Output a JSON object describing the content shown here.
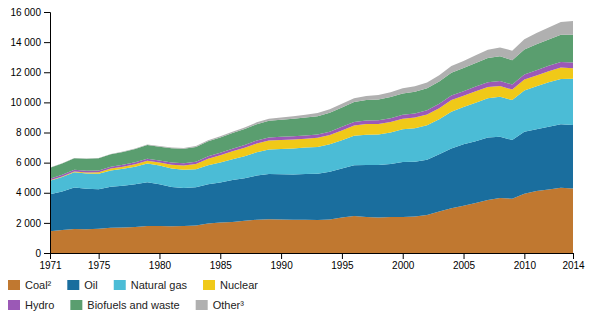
{
  "chart_data": {
    "type": "area",
    "stacked": true,
    "grid": false,
    "legend": "bottom",
    "x": [
      1971,
      1972,
      1973,
      1974,
      1975,
      1976,
      1977,
      1978,
      1979,
      1980,
      1981,
      1982,
      1983,
      1984,
      1985,
      1986,
      1987,
      1988,
      1989,
      1990,
      1991,
      1992,
      1993,
      1994,
      1995,
      1996,
      1997,
      1998,
      1999,
      2000,
      2001,
      2002,
      2003,
      2004,
      2005,
      2006,
      2007,
      2008,
      2009,
      2010,
      2011,
      2012,
      2013,
      2014
    ],
    "xlim": [
      1971,
      2014
    ],
    "xticks": [
      1971,
      1975,
      1980,
      1985,
      1990,
      1995,
      2000,
      2005,
      2010,
      2014
    ],
    "ylim": [
      0,
      16000
    ],
    "yticks": [
      0,
      {
        "value": 2000,
        "label": "2 000"
      },
      {
        "value": 4000,
        "label": "4 000"
      },
      {
        "value": 6000,
        "label": "6 000"
      },
      {
        "value": 8000,
        "label": "8 000"
      },
      {
        "value": 10000,
        "label": "10 000"
      },
      {
        "value": 12000,
        "label": "12 000"
      },
      {
        "value": 14000,
        "label": "14 000"
      },
      {
        "value": 16000,
        "label": "16 000"
      }
    ],
    "series": [
      {
        "name": "Coal²",
        "color": "#c07830",
        "values": [
          1449,
          1525,
          1590,
          1580,
          1613,
          1674,
          1699,
          1731,
          1790,
          1792,
          1773,
          1787,
          1831,
          1955,
          2020,
          2066,
          2147,
          2213,
          2245,
          2226,
          2212,
          2201,
          2199,
          2227,
          2349,
          2451,
          2389,
          2356,
          2395,
          2384,
          2417,
          2516,
          2763,
          2969,
          3136,
          3313,
          3524,
          3644,
          3606,
          3938,
          4109,
          4218,
          4328,
          4286
        ]
      },
      {
        "name": "Oil",
        "color": "#1a6e9e",
        "values": [
          2450,
          2563,
          2756,
          2679,
          2620,
          2730,
          2769,
          2826,
          2914,
          2774,
          2613,
          2536,
          2533,
          2613,
          2656,
          2778,
          2821,
          2928,
          3000,
          3006,
          3007,
          3038,
          3061,
          3161,
          3269,
          3381,
          3449,
          3486,
          3518,
          3654,
          3643,
          3677,
          3785,
          3970,
          4078,
          4101,
          4148,
          4075,
          3897,
          4113,
          4114,
          4172,
          4219,
          4211
        ]
      },
      {
        "name": "Natural gas",
        "color": "#4bbcd6",
        "values": [
          895,
          952,
          1007,
          1018,
          1028,
          1080,
          1122,
          1175,
          1241,
          1235,
          1225,
          1196,
          1199,
          1264,
          1334,
          1383,
          1456,
          1552,
          1628,
          1675,
          1724,
          1760,
          1784,
          1833,
          1873,
          1953,
          2019,
          2026,
          2090,
          2171,
          2217,
          2281,
          2337,
          2444,
          2475,
          2566,
          2600,
          2655,
          2649,
          2740,
          2848,
          2938,
          3004,
          3065
        ]
      },
      {
        "name": "Nuclear",
        "color": "#f0c918",
        "values": [
          29,
          40,
          54,
          72,
          100,
          120,
          140,
          160,
          180,
          200,
          255,
          290,
          340,
          420,
          480,
          520,
          560,
          580,
          600,
          600,
          600,
          590,
          600,
          610,
          650,
          680,
          700,
          690,
          690,
          700,
          720,
          720,
          730,
          770,
          750,
          760,
          750,
          720,
          700,
          720,
          720,
          740,
          760,
          710
        ]
      },
      {
        "name": "Hydro",
        "color": "#9b59b6",
        "values": [
          104,
          108,
          112,
          115,
          118,
          122,
          126,
          132,
          138,
          144,
          148,
          153,
          160,
          165,
          172,
          179,
          186,
          192,
          198,
          204,
          208,
          215,
          219,
          226,
          234,
          240,
          248,
          254,
          261,
          266,
          272,
          279,
          291,
          299,
          305,
          313,
          320,
          327,
          329,
          341,
          350,
          358,
          369,
          379
        ]
      },
      {
        "name": "Biofuels and waste",
        "color": "#5a9e6f",
        "values": [
          736,
          756,
          778,
          800,
          814,
          830,
          851,
          874,
          900,
          914,
          934,
          953,
          972,
          996,
          1013,
          1033,
          1063,
          1090,
          1116,
          1143,
          1168,
          1195,
          1224,
          1261,
          1289,
          1316,
          1346,
          1372,
          1398,
          1422,
          1438,
          1458,
          1480,
          1508,
          1534,
          1567,
          1600,
          1633,
          1623,
          1659,
          1722,
          1756,
          1814,
          1843
        ]
      },
      {
        "name": "Other³",
        "color": "#b0b0b0",
        "values": [
          13,
          14,
          16,
          18,
          20,
          24,
          28,
          33,
          38,
          43,
          49,
          55,
          62,
          70,
          79,
          90,
          103,
          118,
          133,
          150,
          168,
          186,
          205,
          224,
          240,
          259,
          279,
          300,
          322,
          345,
          369,
          394,
          420,
          448,
          477,
          510,
          545,
          587,
          631,
          680,
          736,
          792,
          850,
          906
        ]
      }
    ]
  }
}
